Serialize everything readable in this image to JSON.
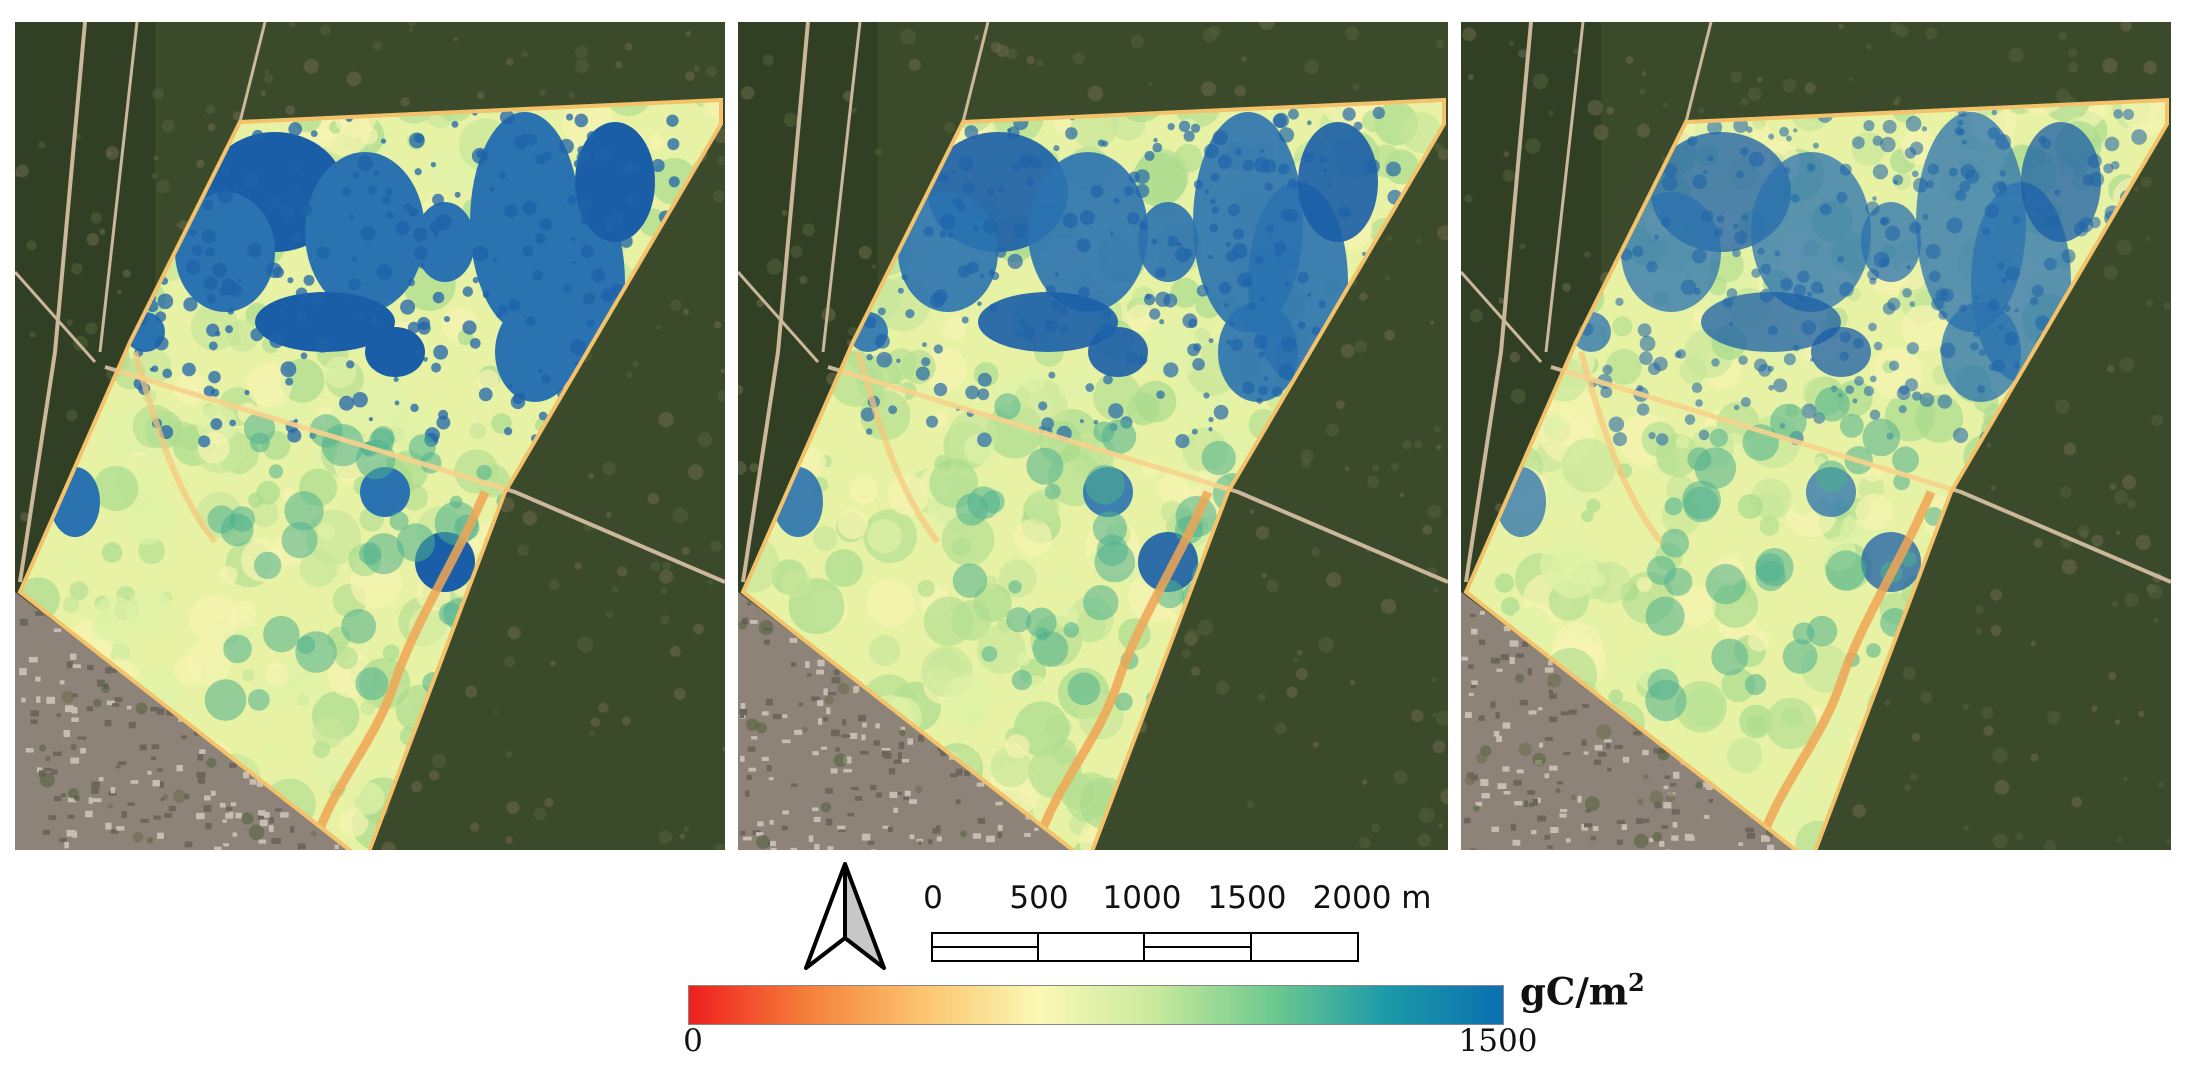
{
  "panels": [
    {
      "name": "map-panel-1",
      "variant": 1
    },
    {
      "name": "map-panel-2",
      "variant": 2
    },
    {
      "name": "map-panel-3",
      "variant": 3
    }
  ],
  "north_arrow": {
    "icon": "north-arrow-icon"
  },
  "scale_bar": {
    "labels": [
      "0",
      "500",
      "1000",
      "1500",
      "2000 m"
    ]
  },
  "colorbar": {
    "min_label": "0",
    "max_label": "1500",
    "unit_base": "gC/m",
    "unit_exp": "2",
    "colors": [
      "#ee1f1f",
      "#f57d3a",
      "#fbc46e",
      "#fbf8b4",
      "#c9ea9d",
      "#6fca8f",
      "#1b9aa8",
      "#0b6fb0"
    ]
  },
  "basemap_colors": {
    "vegetation": "#3c4a2c",
    "vegetation_dark": "#2a3a22",
    "urban": "#8d8378",
    "road": "#cbb79a"
  }
}
